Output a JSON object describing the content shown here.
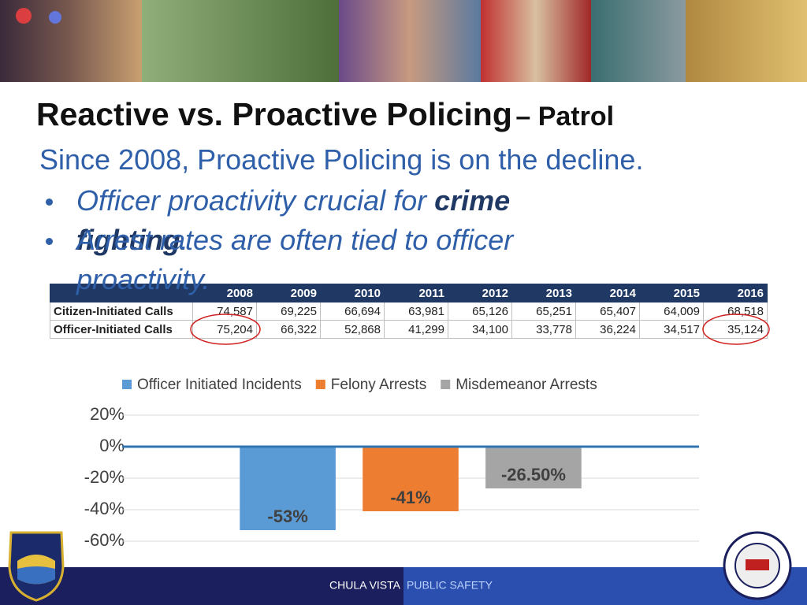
{
  "header": {
    "title": "Reactive vs. Proactive Policing",
    "title_suffix": "– Patrol"
  },
  "subtitle": "Since 2008, Proactive Policing is on the decline.",
  "bullets": [
    {
      "parts": [
        {
          "text": "Officer proactivity crucial for ",
          "bold": false
        },
        {
          "text": "crime fighting",
          "bold": true
        },
        {
          "text": ".",
          "bold": false
        }
      ]
    },
    {
      "parts": [
        {
          "text": "Arrest rates are often tied to officer proactivity.",
          "bold": false
        }
      ]
    }
  ],
  "table": {
    "columns": [
      "2008",
      "2009",
      "2010",
      "2011",
      "2012",
      "2013",
      "2014",
      "2015",
      "2016"
    ],
    "rows": [
      {
        "label": "Citizen-Initiated Calls",
        "values": [
          "74,587",
          "69,225",
          "66,694",
          "63,981",
          "65,126",
          "65,251",
          "65,407",
          "64,009",
          "68,518"
        ]
      },
      {
        "label": "Officer-Initiated Calls",
        "values": [
          "75,204",
          "66,322",
          "52,868",
          "41,299",
          "34,100",
          "33,778",
          "36,224",
          "34,517",
          "35,124"
        ]
      }
    ]
  },
  "chart_data": {
    "type": "bar",
    "categories": [
      null
    ],
    "series": [
      {
        "name": "Officer Initiated Incidents",
        "color": "#5b9bd5",
        "values": [
          -53
        ],
        "value_labels": [
          "-53%"
        ]
      },
      {
        "name": "Felony Arrests",
        "color": "#ed7d31",
        "values": [
          -41
        ],
        "value_labels": [
          "-41%"
        ]
      },
      {
        "name": "Misdemeanor Arrests",
        "color": "#a5a5a5",
        "values": [
          -26.5
        ],
        "value_labels": [
          "-26.50%"
        ]
      }
    ],
    "ylim": [
      -60,
      20
    ],
    "yticks": [
      {
        "value": 20,
        "label": "20%"
      },
      {
        "value": 0,
        "label": "0%"
      },
      {
        "value": -20,
        "label": "-20%"
      },
      {
        "value": -40,
        "label": "-40%"
      },
      {
        "value": -60,
        "label": "-60%"
      }
    ],
    "grid": true,
    "legend": "top"
  },
  "footer": {
    "left": "CHULA VISTA",
    "right": "PUBLIC SAFETY"
  }
}
